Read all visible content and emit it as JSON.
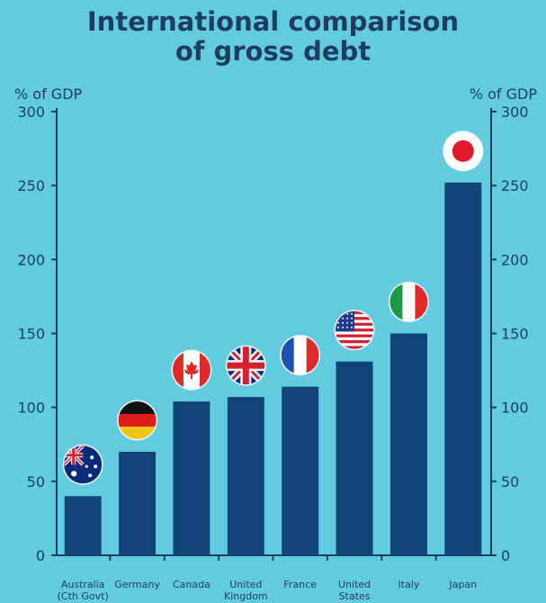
{
  "chart_data": {
    "type": "bar",
    "title_lines": [
      "International comparison",
      "of gross debt"
    ],
    "ylabel_left": "% of GDP",
    "ylabel_right": "% of GDP",
    "ylim": [
      0,
      300
    ],
    "yticks": [
      0,
      50,
      100,
      150,
      200,
      250,
      300
    ],
    "categories": [
      [
        "Australia",
        "(Cth Govt)"
      ],
      [
        "Germany"
      ],
      [
        "Canada"
      ],
      [
        "United",
        "Kingdom"
      ],
      [
        "France"
      ],
      [
        "United",
        "States"
      ],
      [
        "Italy"
      ],
      [
        "Japan"
      ]
    ],
    "values": [
      40,
      70,
      104,
      107,
      114,
      131,
      150,
      252
    ],
    "flags": [
      "australia-flag",
      "germany-flag",
      "canada-flag",
      "united-kingdom-flag",
      "france-flag",
      "united-states-flag",
      "italy-flag",
      "japan-flag"
    ],
    "bar_color": "#11457a",
    "axis_color": "#1e3d62",
    "background": "#62cbe0"
  }
}
